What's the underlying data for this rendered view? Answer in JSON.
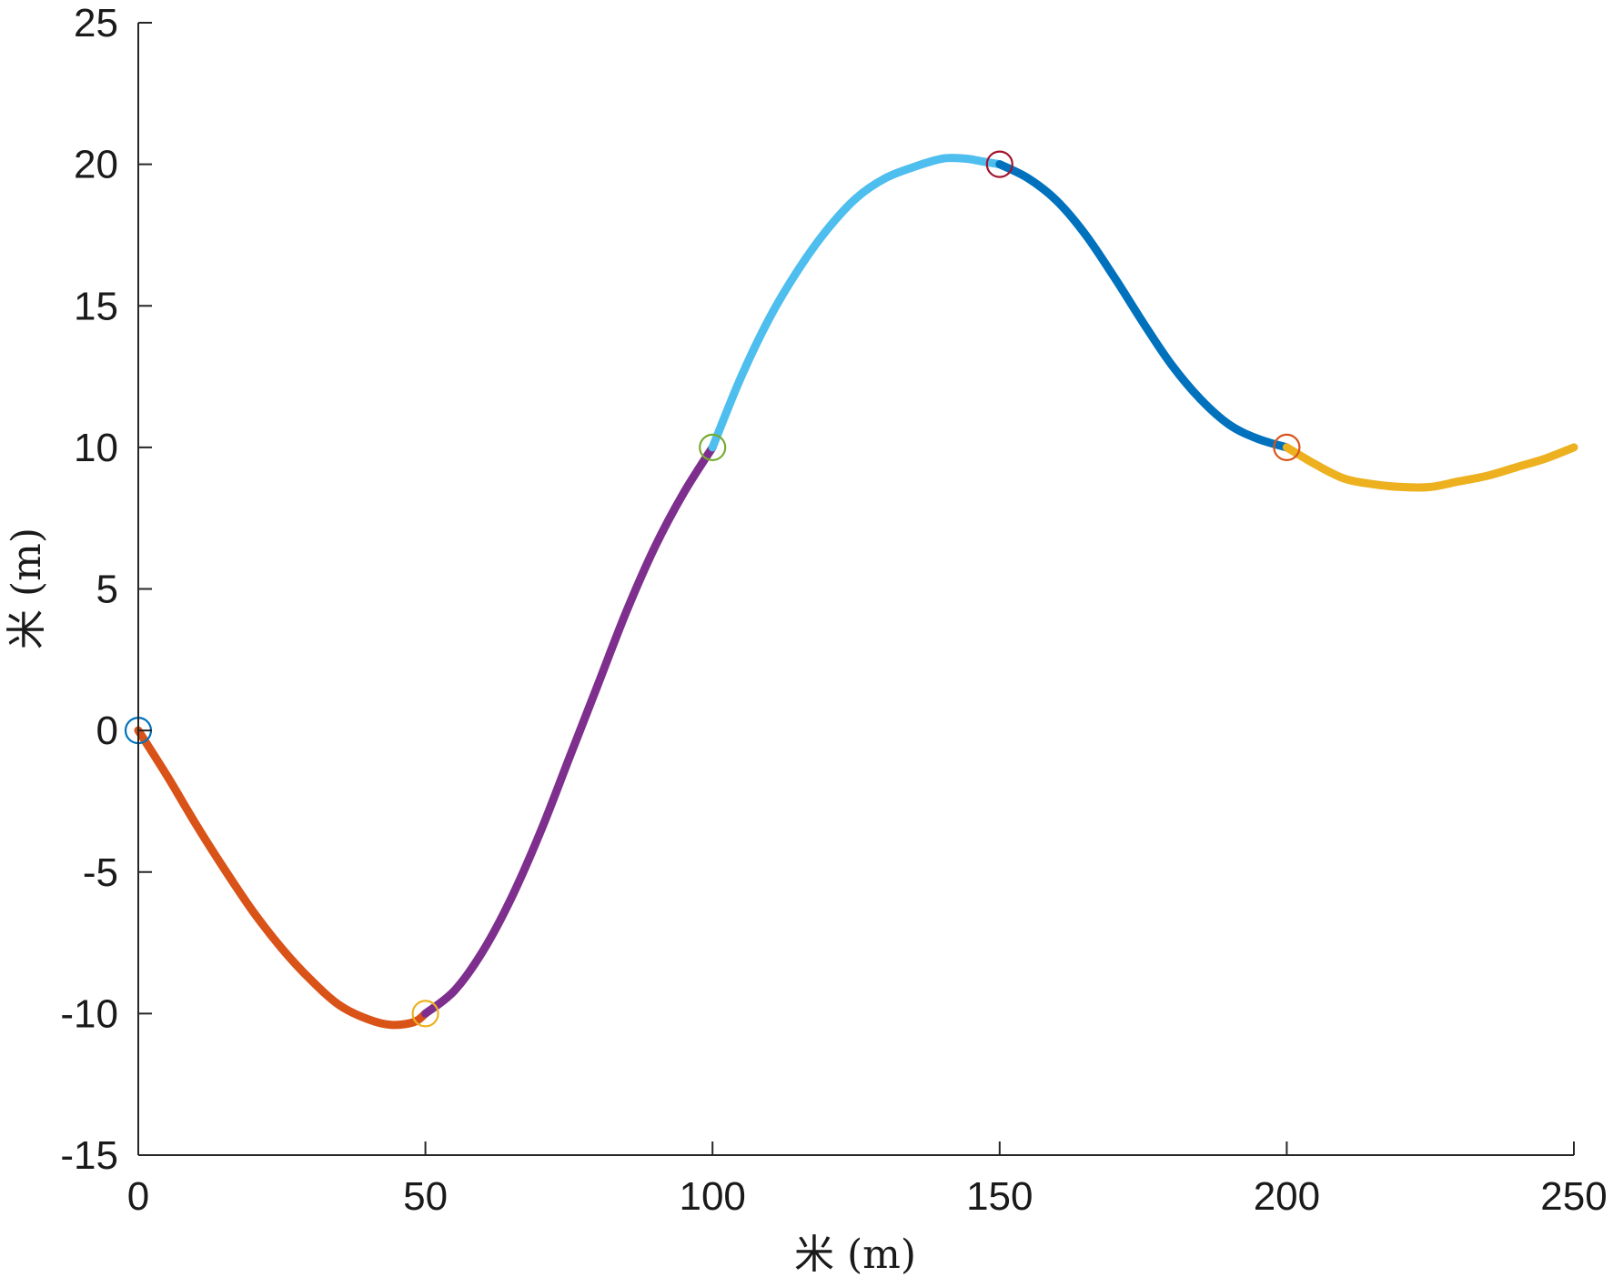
{
  "chart_data": {
    "type": "line",
    "xlabel": "米 (m)",
    "ylabel": "米 (m)",
    "xlim": [
      0,
      250
    ],
    "ylim": [
      -15,
      25
    ],
    "xticks": [
      0,
      50,
      100,
      150,
      200,
      250
    ],
    "yticks": [
      -15,
      -10,
      -5,
      0,
      5,
      10,
      15,
      20,
      25
    ],
    "grid": false,
    "series": [
      {
        "color": "#d95319",
        "points": [
          [
            0,
            0
          ],
          [
            5,
            -1.6
          ],
          [
            10,
            -3.3
          ],
          [
            15,
            -4.9
          ],
          [
            20,
            -6.4
          ],
          [
            25,
            -7.7
          ],
          [
            30,
            -8.8
          ],
          [
            35,
            -9.7
          ],
          [
            40,
            -10.2
          ],
          [
            44,
            -10.4
          ],
          [
            48,
            -10.3
          ],
          [
            50,
            -10.0
          ]
        ]
      },
      {
        "color": "#7e2f8e",
        "points": [
          [
            50,
            -10.0
          ],
          [
            55,
            -9.2
          ],
          [
            60,
            -7.8
          ],
          [
            65,
            -5.9
          ],
          [
            70,
            -3.6
          ],
          [
            75,
            -1.0
          ],
          [
            80,
            1.6
          ],
          [
            85,
            4.2
          ],
          [
            90,
            6.5
          ],
          [
            95,
            8.4
          ],
          [
            100,
            10.0
          ]
        ]
      },
      {
        "color": "#4dbeee",
        "points": [
          [
            100,
            10.0
          ],
          [
            105,
            12.5
          ],
          [
            110,
            14.6
          ],
          [
            115,
            16.3
          ],
          [
            120,
            17.7
          ],
          [
            125,
            18.8
          ],
          [
            130,
            19.5
          ],
          [
            135,
            19.9
          ],
          [
            140,
            20.2
          ],
          [
            144,
            20.2
          ],
          [
            147,
            20.1
          ],
          [
            150,
            20.0
          ]
        ]
      },
      {
        "color": "#0072bd",
        "points": [
          [
            150,
            20.0
          ],
          [
            155,
            19.5
          ],
          [
            160,
            18.7
          ],
          [
            165,
            17.5
          ],
          [
            170,
            16.0
          ],
          [
            175,
            14.4
          ],
          [
            180,
            12.9
          ],
          [
            185,
            11.7
          ],
          [
            190,
            10.8
          ],
          [
            195,
            10.3
          ],
          [
            200,
            10.0
          ]
        ]
      },
      {
        "color": "#edb120",
        "points": [
          [
            200,
            10.0
          ],
          [
            205,
            9.4
          ],
          [
            210,
            8.9
          ],
          [
            215,
            8.7
          ],
          [
            220,
            8.6
          ],
          [
            225,
            8.6
          ],
          [
            230,
            8.8
          ],
          [
            235,
            9.0
          ],
          [
            240,
            9.3
          ],
          [
            245,
            9.6
          ],
          [
            250,
            10.0
          ]
        ]
      }
    ],
    "markers": [
      {
        "x": 0,
        "y": 0,
        "color": "#0072bd"
      },
      {
        "x": 50,
        "y": -10,
        "color": "#edb120"
      },
      {
        "x": 100,
        "y": 10,
        "color": "#77ac30"
      },
      {
        "x": 150,
        "y": 20,
        "color": "#a2142f"
      },
      {
        "x": 200,
        "y": 10,
        "color": "#d95319"
      }
    ]
  }
}
